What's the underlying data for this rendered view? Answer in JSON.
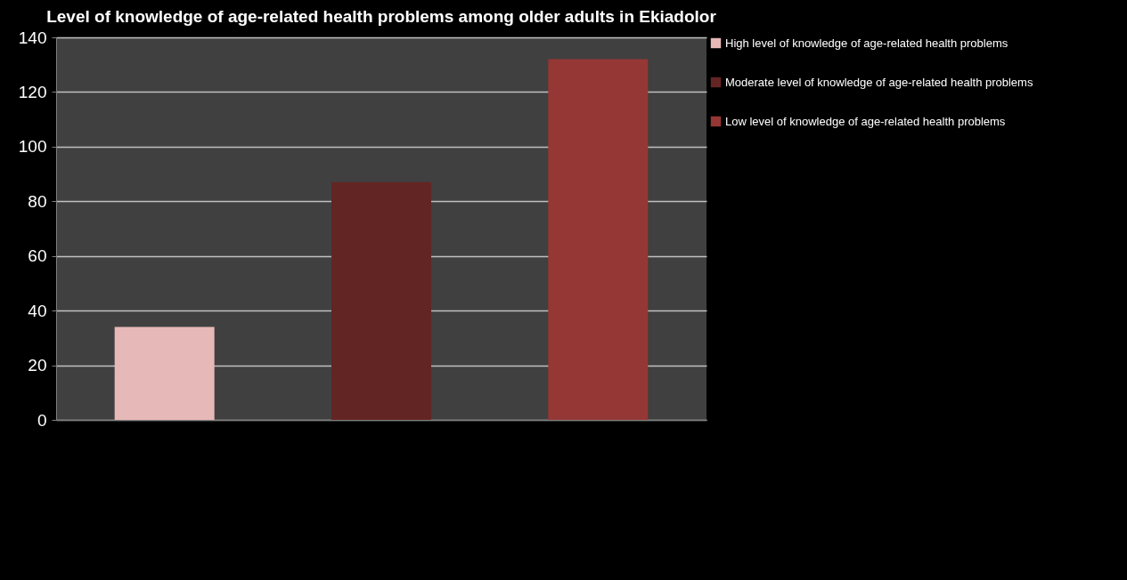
{
  "chart_data": {
    "type": "bar",
    "title": "Level of knowledge of age-related health problems among older adults in Ekiadolor",
    "categories": [
      null,
      null,
      null
    ],
    "series": [
      {
        "name": "High level of knowledge of age-related health problems",
        "color": "#e6b8b7",
        "values": [
          34,
          null,
          null
        ]
      },
      {
        "name": "Moderate level of knowledge of age-related health problems",
        "color": "#632523",
        "values": [
          null,
          87,
          null
        ]
      },
      {
        "name": "Low level of knowledge of age-related health problems",
        "color": "#953735",
        "values": [
          null,
          null,
          132
        ]
      }
    ],
    "ylim": [
      0,
      140
    ],
    "yticks": [
      0,
      20,
      40,
      60,
      80,
      100,
      120,
      140
    ],
    "grid": "y",
    "legend": "right"
  }
}
